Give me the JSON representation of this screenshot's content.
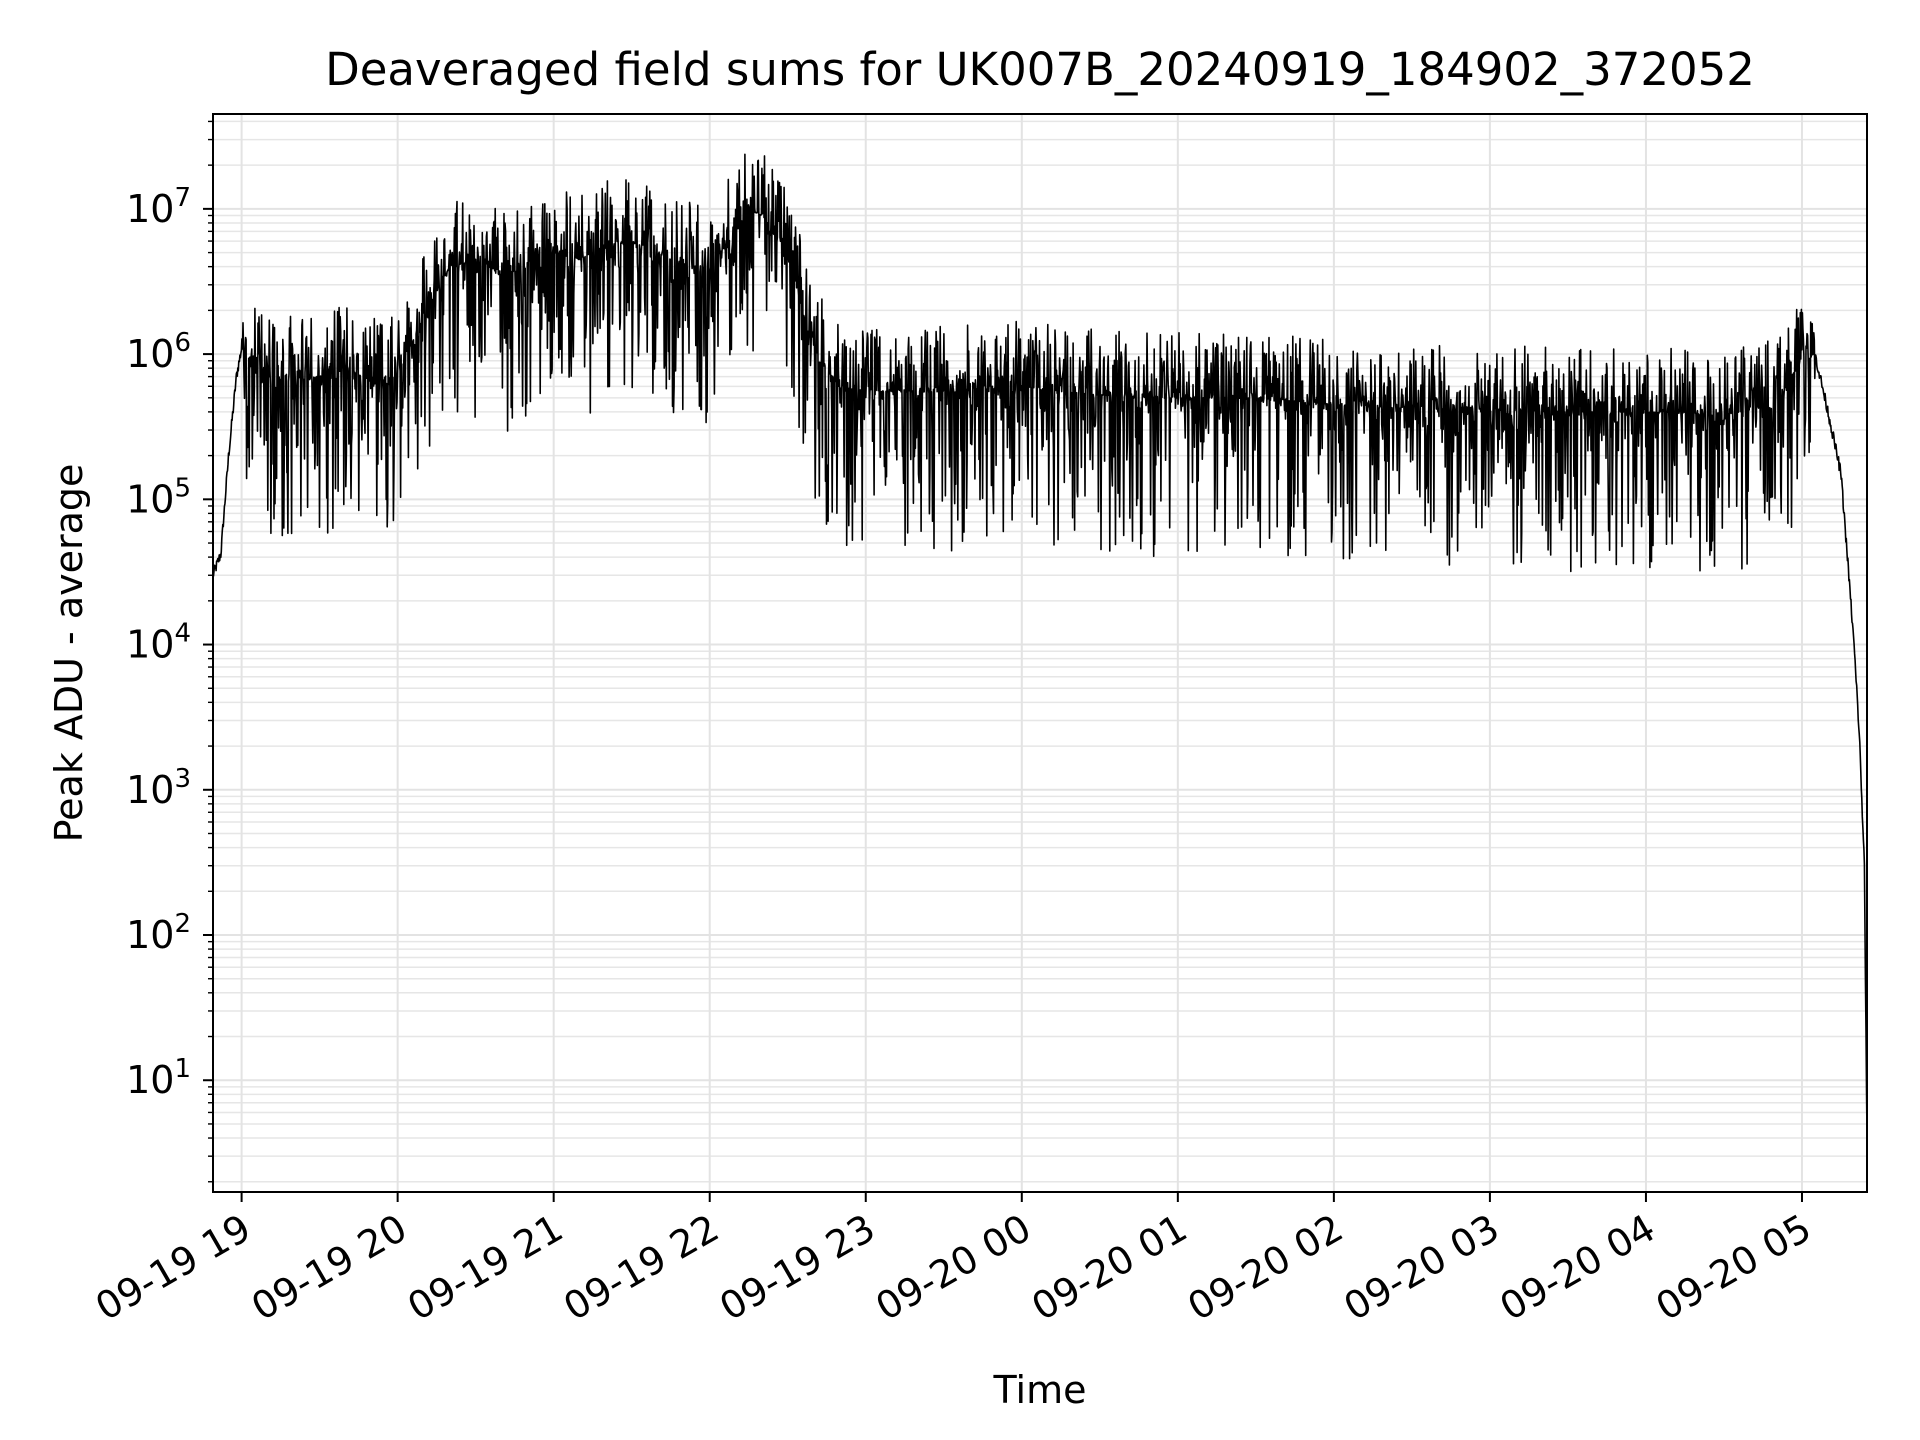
{
  "chart_data": {
    "type": "line",
    "title": "Deaveraged field sums for UK007B_20240919_184902_372052",
    "xlabel": "Time",
    "ylabel": "Peak ADU - average",
    "yscale": "log",
    "ylim": [
      1.7,
      45000000
    ],
    "xlim": [
      "09-19 18:49",
      "09-20 05:25"
    ],
    "grid": true,
    "x_tick_labels": [
      "09-19 19",
      "09-19 20",
      "09-19 21",
      "09-19 22",
      "09-19 23",
      "09-20 00",
      "09-20 01",
      "09-20 02",
      "09-20 03",
      "09-20 04",
      "09-20 05"
    ],
    "y_tick_labels": [
      {
        "base": "10",
        "exp": "1",
        "value": 10
      },
      {
        "base": "10",
        "exp": "2",
        "value": 100
      },
      {
        "base": "10",
        "exp": "3",
        "value": 1000
      },
      {
        "base": "10",
        "exp": "4",
        "value": 10000
      },
      {
        "base": "10",
        "exp": "5",
        "value": 100000
      },
      {
        "base": "10",
        "exp": "6",
        "value": 1000000
      },
      {
        "base": "10",
        "exp": "7",
        "value": 10000000
      }
    ],
    "series": [
      {
        "color": "#000000",
        "x": [
          "09-19 18:49",
          "09-19 18:52",
          "09-19 18:55",
          "09-19 18:58",
          "09-19 19:00",
          "09-19 19:10",
          "09-19 19:20",
          "09-19 19:30",
          "09-19 19:40",
          "09-19 19:50",
          "09-19 20:00",
          "09-19 20:10",
          "09-19 20:20",
          "09-19 20:30",
          "09-19 20:40",
          "09-19 20:50",
          "09-19 21:00",
          "09-19 21:10",
          "09-19 21:20",
          "09-19 21:30",
          "09-19 21:40",
          "09-19 21:50",
          "09-19 22:00",
          "09-19 22:10",
          "09-19 22:15",
          "09-19 22:20",
          "09-19 22:30",
          "09-19 22:40",
          "09-19 22:50",
          "09-19 23:00",
          "09-19 23:30",
          "09-20 00:00",
          "09-20 00:30",
          "09-20 01:00",
          "09-20 01:30",
          "09-20 02:00",
          "09-20 02:30",
          "09-20 03:00",
          "09-20 03:30",
          "09-20 04:00",
          "09-20 04:30",
          "09-20 04:50",
          "09-20 05:00",
          "09-20 05:05",
          "09-20 05:10",
          "09-20 05:15",
          "09-20 05:18",
          "09-20 05:20",
          "09-20 05:22",
          "09-20 05:24",
          "09-20 05:25"
        ],
        "y": [
          30000,
          42000,
          200000,
          700000,
          1100000,
          700000,
          650000,
          700000,
          800000,
          650000,
          700000,
          1800000,
          4000000,
          4500000,
          3500000,
          4000000,
          5000000,
          4500000,
          5500000,
          6000000,
          5000000,
          4000000,
          4000000,
          7000000,
          10000000,
          9000000,
          5000000,
          1000000,
          600000,
          550000,
          550000,
          600000,
          520000,
          500000,
          500000,
          450000,
          420000,
          420000,
          400000,
          400000,
          380000,
          450000,
          950000,
          1000000,
          400000,
          150000,
          30000,
          10000,
          2500,
          300,
          3.9
        ]
      }
    ]
  }
}
